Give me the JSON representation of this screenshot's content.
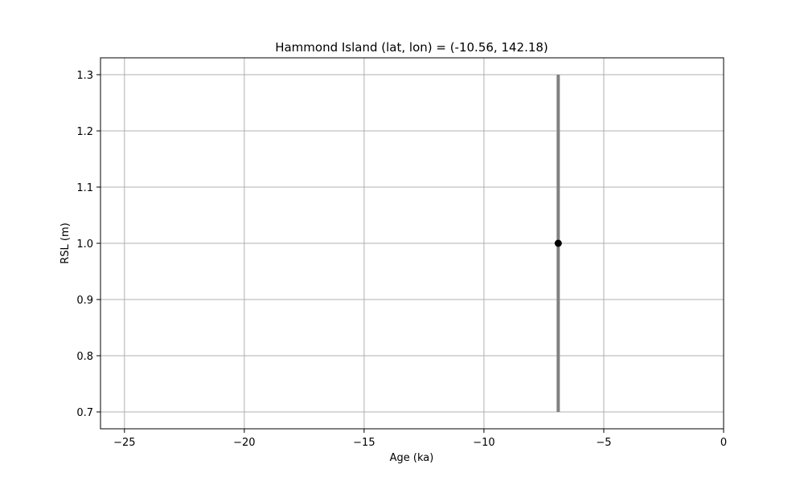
{
  "chart_data": {
    "type": "scatter",
    "title": "Hammond Island (lat, lon) = (-10.56, 142.18)",
    "xlabel": "Age (ka)",
    "ylabel": "RSL (m)",
    "xlim": [
      -26,
      0
    ],
    "ylim": [
      0.67,
      1.33
    ],
    "x_ticks": [
      -25,
      -20,
      -15,
      -10,
      -5,
      0
    ],
    "x_tick_labels": [
      "−25",
      "−20",
      "−15",
      "−10",
      "−5",
      "0"
    ],
    "y_ticks": [
      0.7,
      0.8,
      0.9,
      1.0,
      1.1,
      1.2,
      1.3
    ],
    "y_tick_labels": [
      "0.7",
      "0.8",
      "0.9",
      "1.0",
      "1.1",
      "1.2",
      "1.3"
    ],
    "grid": true,
    "points": [
      {
        "x": -6.9,
        "y": 1.0,
        "y_error_range": [
          0.7,
          1.3
        ]
      }
    ],
    "colors": {
      "marker": "#000000",
      "error_bar": "#808080",
      "grid": "#b0b0b0",
      "axes": "#000000"
    }
  }
}
